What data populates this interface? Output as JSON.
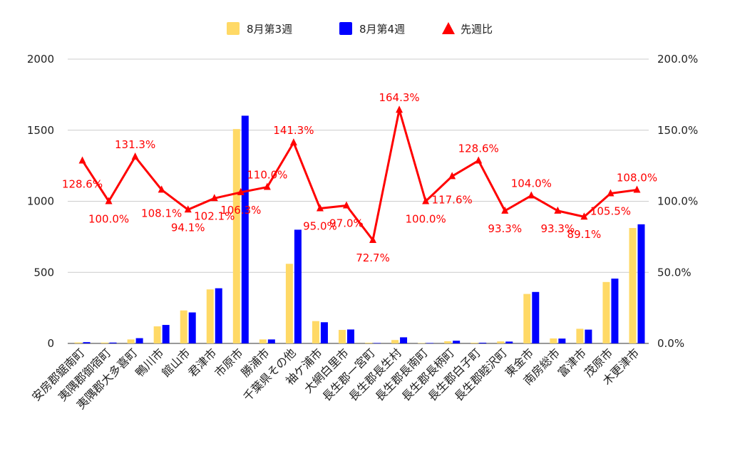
{
  "chart_data": {
    "type": "bar",
    "title": "",
    "categories": [
      "安房郡鋸南町",
      "夷隅郡御宿町",
      "夷隅郡大多喜町",
      "鴨川市",
      "館山市",
      "君津市",
      "市原市",
      "勝浦市",
      "千葉県その他",
      "袖ケ浦市",
      "大網白里市",
      "長生郡一宮町",
      "長生郡長生村",
      "長生郡長南町",
      "長生郡長柄町",
      "長生郡白子町",
      "長生郡睦沢町",
      "東金市",
      "南房総市",
      "富津市",
      "茂原市",
      "木更津市"
    ],
    "series": [
      {
        "name": "8月第3週",
        "type": "bar",
        "axis": "left",
        "color": "#ffd966",
        "values": [
          7,
          6,
          28,
          120,
          232,
          380,
          1508,
          28,
          560,
          157,
          95,
          5,
          24,
          3,
          15,
          5,
          14,
          348,
          35,
          103,
          432,
          812
        ]
      },
      {
        "name": "8月第4週",
        "type": "bar",
        "axis": "left",
        "color": "#0000ff",
        "values": [
          9,
          6,
          37,
          130,
          218,
          388,
          1602,
          28,
          800,
          149,
          98,
          3,
          43,
          3,
          19,
          5,
          13,
          362,
          34,
          97,
          456,
          838
        ]
      },
      {
        "name": "先週比",
        "type": "line",
        "axis": "right",
        "color": "#ff0000",
        "marker": "triangle",
        "values": [
          128.6,
          100.0,
          131.3,
          108.1,
          94.1,
          102.1,
          106.3,
          110.0,
          141.3,
          95.0,
          97.0,
          72.7,
          164.3,
          100.0,
          117.6,
          128.6,
          93.3,
          104.0,
          93.3,
          89.1,
          105.5,
          108.0
        ],
        "labels": [
          "128.6%",
          "100.0%",
          "131.3%",
          "108.1%",
          "94.1%",
          "102.1%",
          "106.3%",
          "110.0%",
          "141.3%",
          "95.0%",
          "97.0%",
          "72.7%",
          "164.3%",
          "100.0%",
          "117.6%",
          "128.6%",
          "93.3%",
          "104.0%",
          "93.3%",
          "89.1%",
          "105.5%",
          "108.0%"
        ]
      }
    ],
    "y_left": {
      "min": 0,
      "max": 2000,
      "ticks": [
        "0",
        "500",
        "1000",
        "1500",
        "2000"
      ]
    },
    "y_right": {
      "min": 0,
      "max": 200,
      "ticks": [
        "0.0%",
        "50.0%",
        "100.0%",
        "150.0%",
        "200.0%"
      ]
    },
    "grid": true,
    "legend": "top-center"
  }
}
